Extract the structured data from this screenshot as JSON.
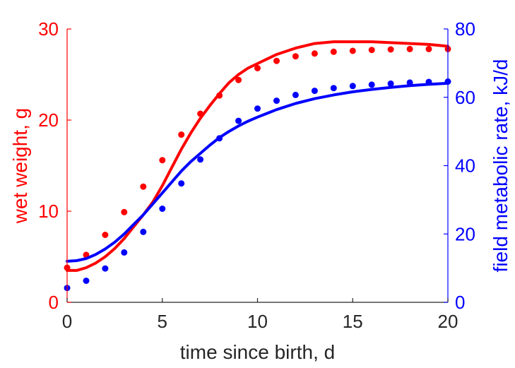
{
  "chart_data": {
    "type": "line",
    "title": "",
    "xlabel": "time since birth, d",
    "ylabel_left": "wet weight, g",
    "ylabel_right": "field metabolic rate, kJ/d",
    "xlim": [
      0,
      20
    ],
    "ylim_left": [
      0,
      30
    ],
    "ylim_right": [
      0,
      80
    ],
    "x_ticks": [
      0,
      5,
      10,
      15,
      20
    ],
    "y_left_ticks": [
      0,
      10,
      20,
      30
    ],
    "y_right_ticks": [
      0,
      20,
      40,
      60,
      80
    ],
    "grid": false,
    "legend": "none",
    "colors": {
      "weight": "#ff0000",
      "metabolic": "#0000ff",
      "axis": "#262626"
    },
    "series": [
      {
        "axis": "left",
        "kind": "points",
        "color": "#ff0000",
        "x": [
          0,
          1,
          2,
          3,
          4,
          5,
          6,
          7,
          8,
          9,
          10,
          11,
          12,
          13,
          14,
          15,
          16,
          17,
          18,
          19,
          20
        ],
        "y": [
          3.8,
          5.2,
          7.4,
          9.9,
          12.7,
          15.6,
          18.4,
          20.7,
          22.7,
          24.4,
          25.7,
          26.5,
          27.0,
          27.3,
          27.5,
          27.6,
          27.7,
          27.75,
          27.8,
          27.8,
          27.8
        ]
      },
      {
        "axis": "left",
        "kind": "line",
        "color": "#ff0000",
        "x": [
          0,
          0.5,
          1,
          1.5,
          2,
          2.5,
          3,
          3.5,
          4,
          4.5,
          5,
          5.5,
          6,
          6.5,
          7,
          7.5,
          8,
          8.5,
          9,
          9.5,
          10,
          11,
          12,
          13,
          14,
          15,
          16,
          17,
          18,
          19,
          20
        ],
        "y": [
          3.5,
          3.5,
          3.8,
          4.3,
          5.0,
          5.9,
          7.0,
          8.3,
          9.6,
          11.0,
          12.8,
          14.8,
          16.8,
          18.6,
          20.2,
          21.6,
          22.9,
          24.1,
          25.0,
          25.7,
          26.2,
          27.2,
          27.9,
          28.4,
          28.6,
          28.6,
          28.6,
          28.5,
          28.4,
          28.3,
          28.1
        ]
      },
      {
        "axis": "right",
        "kind": "points",
        "color": "#0000ff",
        "x": [
          0,
          1,
          2,
          3,
          4,
          5,
          6,
          7,
          8,
          9,
          10,
          11,
          12,
          13,
          14,
          15,
          16,
          17,
          18,
          19,
          20
        ],
        "y": [
          4.2,
          6.3,
          9.9,
          14.6,
          20.6,
          27.4,
          34.8,
          41.8,
          48.0,
          53.1,
          56.7,
          59.0,
          60.7,
          61.9,
          62.7,
          63.3,
          63.7,
          64.0,
          64.3,
          64.5,
          64.6
        ]
      },
      {
        "axis": "right",
        "kind": "line",
        "color": "#0000ff",
        "x": [
          0,
          0.5,
          1,
          1.5,
          2,
          2.5,
          3,
          3.5,
          4,
          4.5,
          5,
          5.5,
          6,
          6.5,
          7,
          7.5,
          8,
          8.5,
          9,
          9.5,
          10,
          11,
          12,
          13,
          14,
          15,
          16,
          17,
          18,
          19,
          20
        ],
        "y": [
          12.0,
          12.2,
          12.8,
          14.0,
          15.6,
          17.6,
          20.0,
          22.8,
          25.6,
          28.8,
          32.0,
          35.2,
          38.4,
          41.2,
          43.6,
          46.0,
          48.2,
          50.0,
          51.6,
          53.0,
          54.2,
          56.4,
          58.2,
          59.6,
          60.7,
          61.6,
          62.3,
          62.9,
          63.4,
          63.8,
          64.1
        ]
      }
    ]
  }
}
